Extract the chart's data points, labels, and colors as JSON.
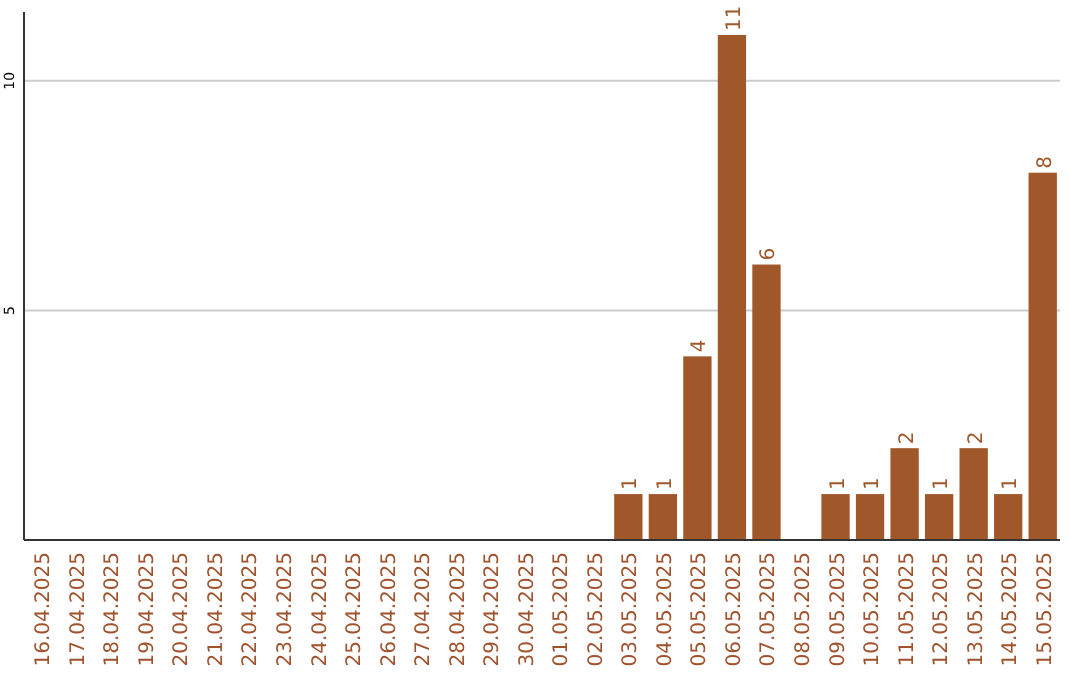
{
  "chart_data": {
    "type": "bar",
    "categories": [
      "16.04.2025",
      "17.04.2025",
      "18.04.2025",
      "19.04.2025",
      "20.04.2025",
      "21.04.2025",
      "22.04.2025",
      "23.04.2025",
      "24.04.2025",
      "25.04.2025",
      "26.04.2025",
      "27.04.2025",
      "28.04.2025",
      "29.04.2025",
      "30.04.2025",
      "01.05.2025",
      "02.05.2025",
      "03.05.2025",
      "04.05.2025",
      "05.05.2025",
      "06.05.2025",
      "07.05.2025",
      "08.05.2025",
      "09.05.2025",
      "10.05.2025",
      "11.05.2025",
      "12.05.2025",
      "13.05.2025",
      "14.05.2025",
      "15.05.2025"
    ],
    "values": [
      0,
      0,
      0,
      0,
      0,
      0,
      0,
      0,
      0,
      0,
      0,
      0,
      0,
      0,
      0,
      0,
      0,
      1,
      1,
      4,
      11,
      6,
      0,
      1,
      1,
      2,
      1,
      2,
      1,
      8
    ],
    "value_labels": [
      null,
      null,
      null,
      null,
      null,
      null,
      null,
      null,
      null,
      null,
      null,
      null,
      null,
      null,
      null,
      null,
      null,
      "1",
      "1",
      "4",
      "11",
      "6",
      null,
      "1",
      "1",
      "2",
      "1",
      "2",
      "1",
      "8"
    ],
    "color": "#a0582a",
    "ylim": [
      0,
      11.5
    ],
    "yticks": [
      5,
      10
    ],
    "grid": "y"
  }
}
